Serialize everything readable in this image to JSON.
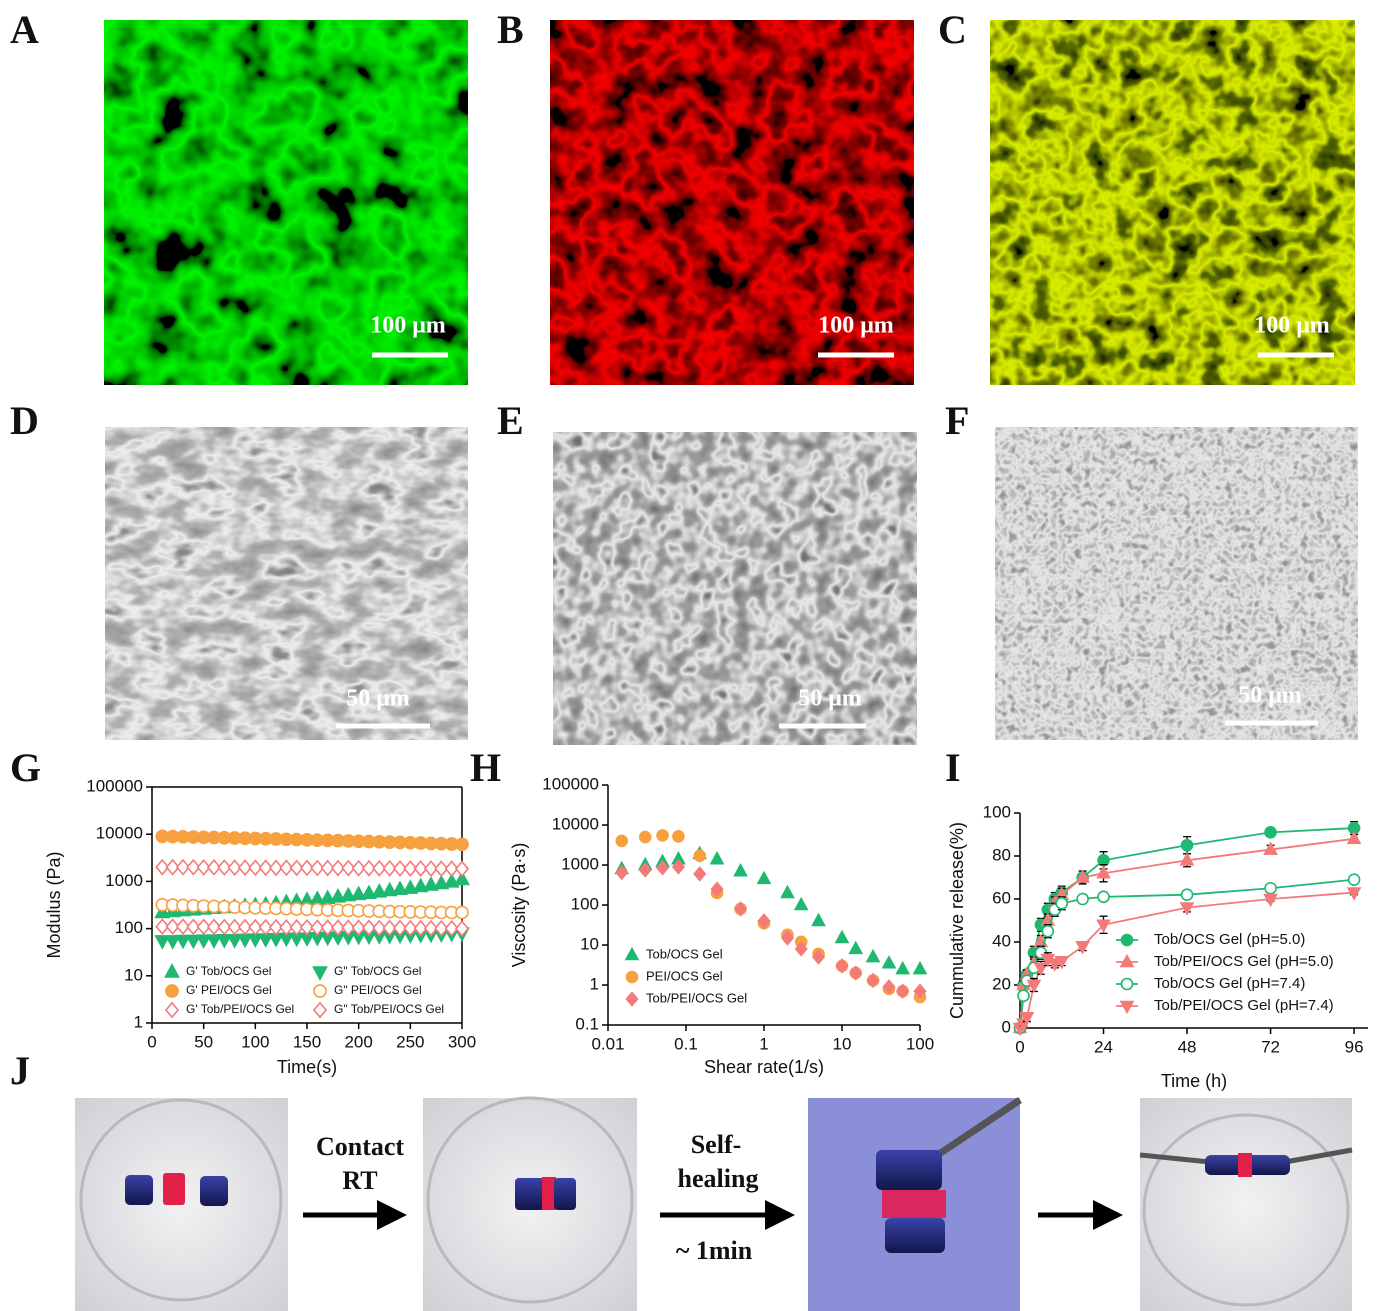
{
  "panel_labels": [
    "A",
    "B",
    "C",
    "D",
    "E",
    "F",
    "G",
    "H",
    "I",
    "J"
  ],
  "scale_bars": [
    "100 μm",
    "100 μm",
    "100 μm",
    "50 μm",
    "50 μm",
    "50 μm"
  ],
  "arrow_labels": [
    {
      "lines": [
        "Contact",
        "RT"
      ]
    },
    {
      "lines": [
        "Self-",
        "healing"
      ],
      "below": "~ 1min"
    }
  ],
  "chart_data": [
    {
      "type": "scatter",
      "x_label": "Time(s)",
      "y_label": "Modulus (Pa)",
      "y_log": true,
      "xlim": [
        0,
        300
      ],
      "xticks": [
        0,
        50,
        100,
        150,
        200,
        250,
        300
      ],
      "ylim": [
        1,
        100000
      ],
      "yticks": [
        1,
        10,
        100,
        1000,
        10000,
        100000
      ],
      "x": [
        10,
        20,
        30,
        40,
        50,
        60,
        70,
        80,
        90,
        100,
        110,
        120,
        130,
        140,
        150,
        160,
        170,
        180,
        190,
        200,
        210,
        220,
        230,
        240,
        250,
        260,
        270,
        280,
        290,
        300
      ],
      "series": [
        {
          "name": "G' Tob/OCS Gel",
          "color": "#1fb870",
          "marker": "triangle-up",
          "filled": true,
          "values": [
            220,
            230,
            240,
            250,
            260,
            270,
            280,
            290,
            300,
            310,
            320,
            340,
            360,
            380,
            400,
            420,
            440,
            470,
            500,
            530,
            560,
            600,
            640,
            680,
            720,
            780,
            840,
            900,
            980,
            1100
          ]
        },
        {
          "name": "G\" Tob/OCS Gel",
          "color": "#1fb870",
          "marker": "triangle-down",
          "filled": true,
          "values": [
            55,
            55,
            56,
            56,
            57,
            57,
            58,
            58,
            59,
            60,
            60,
            61,
            62,
            62,
            63,
            64,
            65,
            66,
            67,
            68,
            69,
            70,
            71,
            72,
            73,
            74,
            75,
            76,
            78,
            80
          ]
        },
        {
          "name": "G' PEI/OCS Gel",
          "color": "#f7a040",
          "marker": "circle",
          "filled": true,
          "values": [
            9000,
            8900,
            8800,
            8700,
            8600,
            8500,
            8400,
            8300,
            8200,
            8100,
            8000,
            7900,
            7800,
            7700,
            7600,
            7500,
            7400,
            7300,
            7200,
            7100,
            7000,
            6900,
            6800,
            6700,
            6600,
            6500,
            6400,
            6300,
            6200,
            6100
          ]
        },
        {
          "name": "G\" PEI/OCS Gel",
          "color": "#f7a040",
          "marker": "circle",
          "filled": false,
          "values": [
            320,
            315,
            310,
            305,
            300,
            295,
            290,
            285,
            280,
            276,
            272,
            268,
            264,
            260,
            256,
            252,
            248,
            245,
            242,
            239,
            236,
            233,
            230,
            228,
            226,
            224,
            222,
            220,
            220,
            220
          ]
        },
        {
          "name": "G' Tob/PEI/OCS Gel",
          "color": "#f47a7a",
          "marker": "diamond",
          "filled": false,
          "values": [
            2000,
            2000,
            1990,
            1990,
            1980,
            1980,
            1970,
            1960,
            1960,
            1950,
            1950,
            1940,
            1940,
            1930,
            1930,
            1920,
            1920,
            1910,
            1910,
            1900,
            1900,
            1890,
            1890,
            1880,
            1880,
            1870,
            1870,
            1860,
            1860,
            1850
          ]
        },
        {
          "name": "G\" Tob/PEI/OCS Gel",
          "color": "#f47a7a",
          "marker": "diamond",
          "filled": false,
          "values": [
            110,
            110,
            110,
            109,
            109,
            109,
            108,
            108,
            108,
            107,
            107,
            107,
            106,
            106,
            106,
            105,
            105,
            105,
            104,
            104,
            104,
            103,
            103,
            103,
            102,
            102,
            102,
            101,
            101,
            100
          ]
        }
      ]
    },
    {
      "type": "scatter",
      "x_label": "Shear rate(1/s)",
      "y_label": "Viscosity (Pa·s)",
      "x_log": true,
      "y_log": true,
      "xlim": [
        0.01,
        100
      ],
      "xticks": [
        0.01,
        0.1,
        1,
        10,
        100
      ],
      "ylim": [
        0.1,
        100000
      ],
      "yticks": [
        0.1,
        1,
        10,
        100,
        1000,
        10000,
        100000
      ],
      "x": [
        0.015,
        0.03,
        0.05,
        0.08,
        0.15,
        0.25,
        0.5,
        1,
        2,
        3,
        5,
        10,
        15,
        25,
        40,
        60,
        100
      ],
      "series": [
        {
          "name": "Tob/OCS Gel",
          "color": "#1fb870",
          "marker": "triangle-up",
          "filled": true,
          "values": [
            800,
            1000,
            1200,
            1400,
            1900,
            1400,
            700,
            450,
            200,
            100,
            40,
            15,
            8,
            5,
            3.5,
            2.5,
            2.5
          ]
        },
        {
          "name": "PEI/OCS Gel",
          "color": "#f7a040",
          "marker": "circle",
          "filled": true,
          "values": [
            4000,
            5000,
            5500,
            5200,
            1700,
            200,
            80,
            35,
            18,
            12,
            6,
            3,
            2,
            1.3,
            0.8,
            0.7,
            0.5
          ]
        },
        {
          "name": "Tob/PEI/OCS Gel",
          "color": "#f47a7a",
          "marker": "diamond",
          "filled": true,
          "values": [
            650,
            750,
            850,
            900,
            600,
            250,
            80,
            40,
            15,
            8,
            5,
            3,
            2,
            1.3,
            0.9,
            0.7,
            0.7
          ]
        }
      ]
    },
    {
      "type": "line",
      "x_label": "Time (h)",
      "y_label": "Cummulative release(%)",
      "xlim": [
        0,
        100
      ],
      "xticks": [
        0,
        24,
        48,
        72,
        96
      ],
      "ylim": [
        0,
        100
      ],
      "yticks": [
        0,
        20,
        40,
        60,
        80,
        100
      ],
      "x": [
        0,
        1,
        2,
        4,
        6,
        8,
        10,
        12,
        18,
        24,
        48,
        72,
        96
      ],
      "series": [
        {
          "name": "Tob/OCS Gel (pH=5.0)",
          "color": "#1fb870",
          "marker": "circle",
          "filled": true,
          "values": [
            0,
            20,
            25,
            35,
            48,
            55,
            60,
            63,
            70,
            78,
            85,
            91,
            93
          ],
          "errors": [
            0,
            2,
            2,
            3,
            3,
            3,
            3,
            3,
            2,
            4,
            4,
            2,
            3
          ]
        },
        {
          "name": "Tob/PEI/OCS Gel (pH=5.0)",
          "color": "#f47a7a",
          "marker": "triangle-up",
          "filled": true,
          "values": [
            0,
            20,
            25,
            30,
            40,
            50,
            58,
            62,
            70,
            72,
            78,
            83,
            88
          ],
          "errors": [
            0,
            2,
            2,
            3,
            3,
            3,
            3,
            3,
            3,
            4,
            3,
            2,
            2
          ]
        },
        {
          "name": "Tob/OCS Gel (pH=7.4)",
          "color": "#1fb870",
          "marker": "circle",
          "filled": false,
          "values": [
            0,
            15,
            22,
            28,
            35,
            45,
            55,
            58,
            60,
            61,
            62,
            65,
            69
          ],
          "errors": [
            0,
            2,
            2,
            2,
            3,
            3,
            3,
            3,
            2,
            2,
            2,
            1,
            1
          ]
        },
        {
          "name": "Tob/PEI/OCS Gel (pH=7.4)",
          "color": "#f47a7a",
          "marker": "triangle-down",
          "filled": true,
          "values": [
            0,
            2,
            5,
            20,
            28,
            32,
            30,
            31,
            38,
            48,
            56,
            60,
            63
          ],
          "errors": [
            0,
            1,
            2,
            3,
            3,
            3,
            2,
            2,
            2,
            4,
            2,
            1,
            1
          ]
        }
      ]
    }
  ]
}
